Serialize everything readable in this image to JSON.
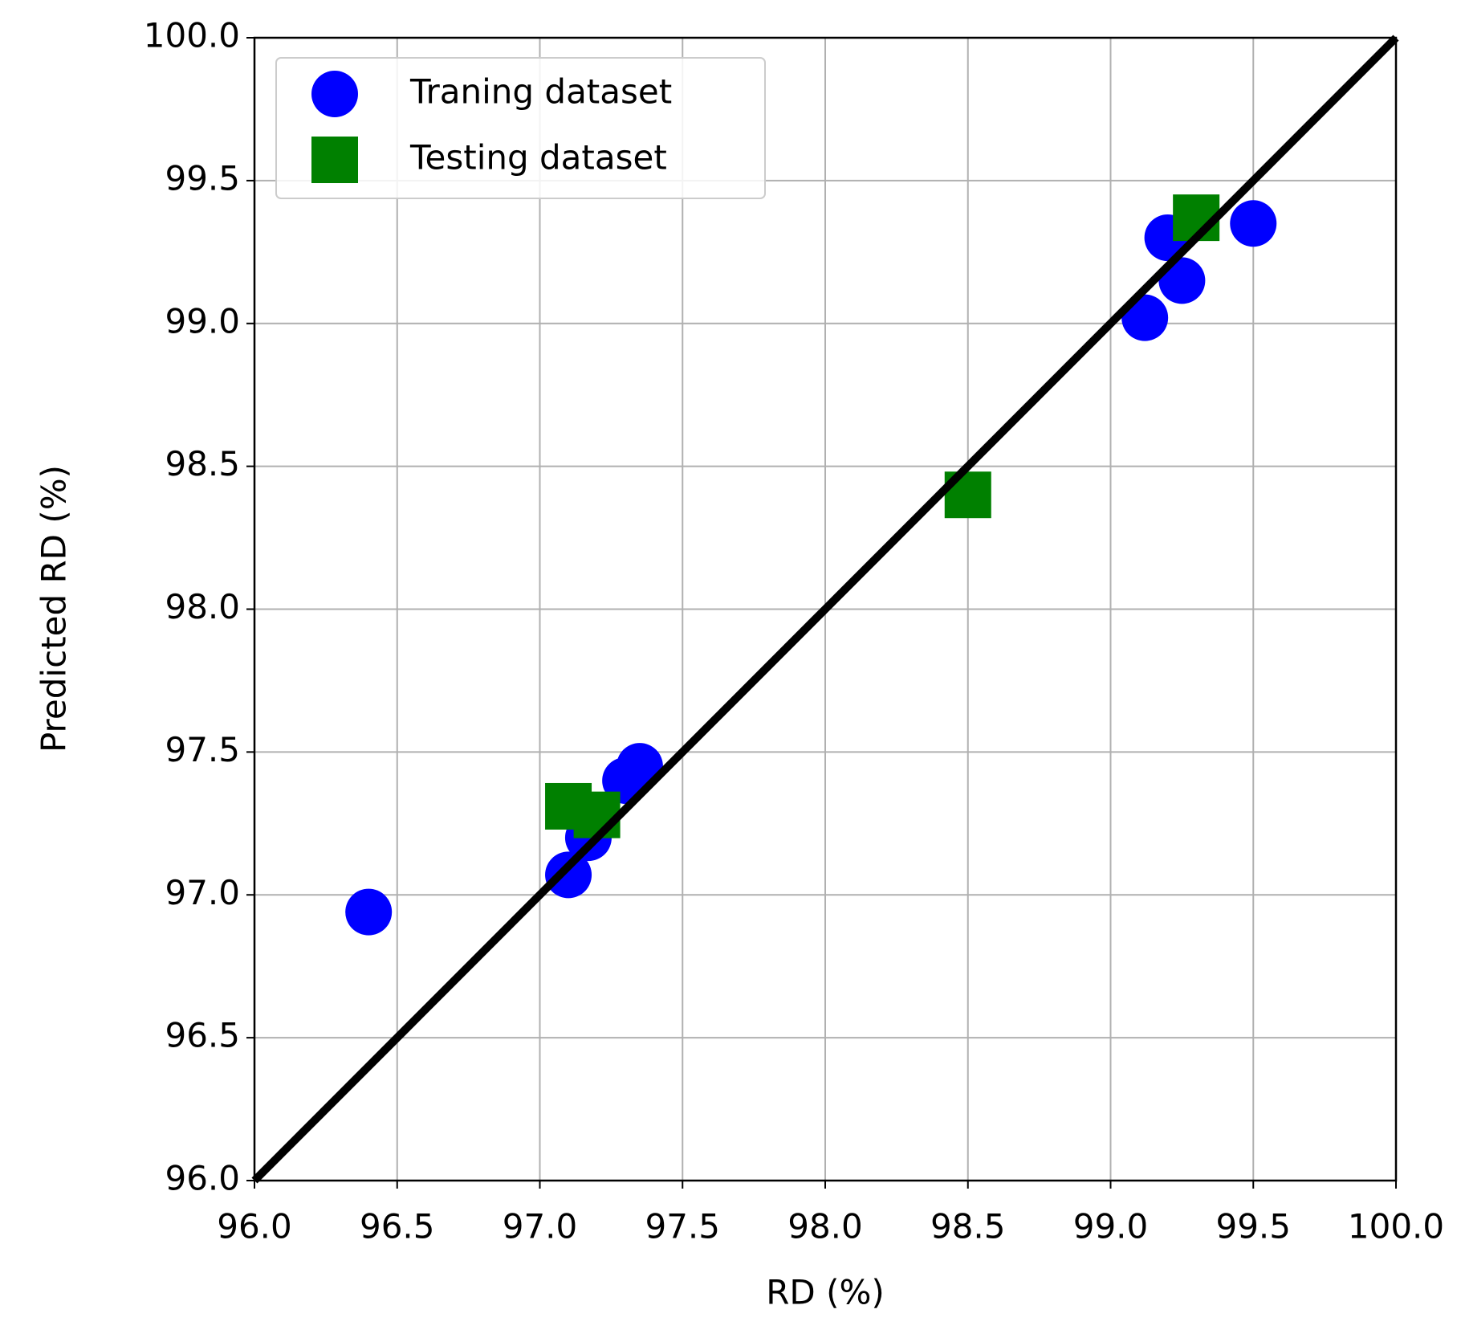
{
  "chart_data": {
    "type": "scatter",
    "xlabel": "RD (%)",
    "ylabel": "Predicted RD (%)",
    "xlim": [
      96,
      100
    ],
    "ylim": [
      96,
      100
    ],
    "xticks": [
      {
        "value": 96,
        "label": "96.0"
      },
      {
        "value": 96.5,
        "label": "96.5"
      },
      {
        "value": 97,
        "label": "97.0"
      },
      {
        "value": 97.5,
        "label": "97.5"
      },
      {
        "value": 98,
        "label": "98.0"
      },
      {
        "value": 98.5,
        "label": "98.5"
      },
      {
        "value": 99,
        "label": "99.0"
      },
      {
        "value": 99.5,
        "label": "99.5"
      },
      {
        "value": 100,
        "label": "100.0"
      }
    ],
    "yticks": [
      {
        "value": 96,
        "label": "96.0"
      },
      {
        "value": 96.5,
        "label": "96.5"
      },
      {
        "value": 97,
        "label": "97.0"
      },
      {
        "value": 97.5,
        "label": "97.5"
      },
      {
        "value": 98,
        "label": "98.0"
      },
      {
        "value": 98.5,
        "label": "98.5"
      },
      {
        "value": 99,
        "label": "99.0"
      },
      {
        "value": 99.5,
        "label": "99.5"
      },
      {
        "value": 100,
        "label": "100.0"
      }
    ],
    "grid": true,
    "legend": "upper left",
    "reference_line": {
      "x": [
        96,
        100
      ],
      "y": [
        96,
        100
      ],
      "color": "#000000"
    },
    "series": [
      {
        "name": "Traning dataset",
        "color": "#0000ff",
        "marker": "circle",
        "x": [
          96.4,
          97.1,
          97.17,
          97.3,
          97.35,
          99.12,
          99.2,
          99.25,
          99.5
        ],
        "values": [
          96.94,
          97.07,
          97.2,
          97.4,
          97.45,
          99.02,
          99.3,
          99.15,
          99.35
        ]
      },
      {
        "name": "Testing dataset",
        "color": "#008000",
        "marker": "square",
        "x": [
          97.1,
          97.2,
          98.5,
          99.3
        ],
        "values": [
          97.31,
          97.28,
          98.4,
          99.37
        ]
      }
    ]
  }
}
